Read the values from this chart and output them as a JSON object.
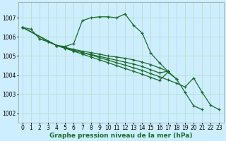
{
  "background_color": "#cceeff",
  "grid_color": "#bbddcc",
  "line_color": "#1a6b2a",
  "marker": "+",
  "markersize": 3.5,
  "linewidth": 0.9,
  "xlabel": "Graphe pression niveau de la mer (hPa)",
  "xlabel_fontsize": 6.5,
  "tick_fontsize": 5.5,
  "xlim": [
    -0.5,
    23.5
  ],
  "ylim": [
    1001.5,
    1007.8
  ],
  "yticks": [
    1002,
    1003,
    1004,
    1005,
    1006,
    1007
  ],
  "xticks": [
    0,
    1,
    2,
    3,
    4,
    5,
    6,
    7,
    8,
    9,
    10,
    11,
    12,
    13,
    14,
    15,
    16,
    17,
    18,
    19,
    20,
    21,
    22,
    23
  ],
  "series": [
    {
      "x": [
        0,
        1,
        2,
        3,
        4,
        5,
        6,
        7,
        8,
        9,
        10,
        11,
        12,
        13,
        14,
        15,
        16,
        17,
        18
      ],
      "y": [
        1006.5,
        1006.4,
        1005.9,
        1005.75,
        1005.55,
        1005.5,
        1005.65,
        1006.85,
        1007.0,
        1007.05,
        1007.05,
        1007.0,
        1007.2,
        1006.6,
        1006.2,
        1005.15,
        1004.65,
        1004.2,
        1003.8
      ]
    },
    {
      "x": [
        0,
        4,
        5,
        6,
        7,
        8,
        9,
        10,
        11,
        12,
        13,
        14,
        15,
        16,
        17
      ],
      "y": [
        1006.5,
        1005.55,
        1005.45,
        1005.35,
        1005.25,
        1005.18,
        1005.1,
        1005.0,
        1004.95,
        1004.88,
        1004.8,
        1004.68,
        1004.55,
        1004.38,
        1004.2
      ]
    },
    {
      "x": [
        0,
        4,
        5,
        6,
        7,
        8,
        9,
        10,
        11,
        12,
        13,
        14,
        15,
        16,
        17
      ],
      "y": [
        1006.5,
        1005.55,
        1005.42,
        1005.3,
        1005.18,
        1005.08,
        1004.98,
        1004.88,
        1004.78,
        1004.68,
        1004.58,
        1004.45,
        1004.28,
        1004.12,
        1004.2
      ]
    },
    {
      "x": [
        0,
        4,
        5,
        6,
        7,
        8,
        9,
        10,
        11,
        12,
        13,
        14,
        15,
        16,
        17,
        18,
        19,
        20,
        21
      ],
      "y": [
        1006.5,
        1005.55,
        1005.4,
        1005.25,
        1005.1,
        1004.95,
        1004.8,
        1004.65,
        1004.5,
        1004.35,
        1004.2,
        1004.05,
        1003.88,
        1003.72,
        1004.15,
        1003.8,
        1003.1,
        1002.4,
        1002.2
      ]
    },
    {
      "x": [
        2,
        3,
        4,
        5,
        6,
        7,
        8,
        9,
        10,
        11,
        12,
        13,
        14,
        15,
        16,
        17,
        18,
        19,
        20,
        21,
        22,
        23
      ],
      "y": [
        1005.9,
        1005.75,
        1005.55,
        1005.42,
        1005.3,
        1005.18,
        1005.05,
        1004.92,
        1004.78,
        1004.65,
        1004.52,
        1004.38,
        1004.25,
        1004.08,
        1003.92,
        1003.75,
        1003.58,
        1003.38,
        1003.85,
        1003.1,
        1002.42,
        1002.2
      ]
    }
  ]
}
